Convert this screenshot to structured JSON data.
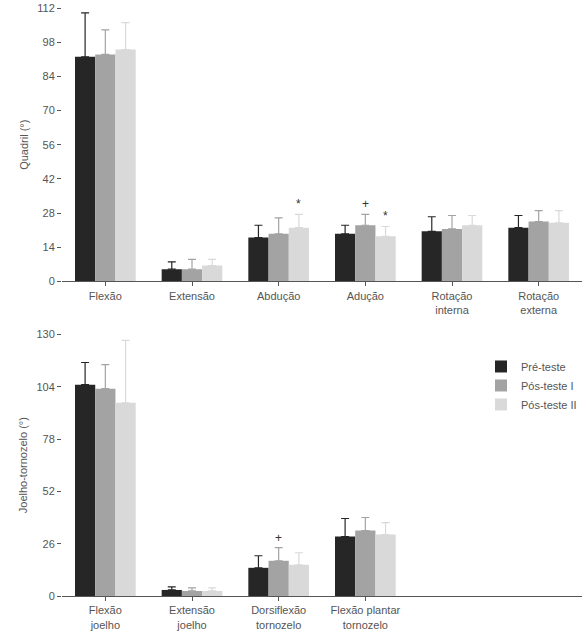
{
  "chart_data": [
    {
      "type": "bar",
      "y_label": "Quadril (°)",
      "categories": [
        "Flexão",
        "Extensão",
        "Abdução",
        "Adução",
        "Rotação\ninterna",
        "Rotação\nexterna"
      ],
      "series": [
        {
          "name": "Pré-teste",
          "color": "#262626",
          "values": [
            92,
            5,
            18,
            19.5,
            20.5,
            22
          ],
          "errors": [
            18,
            3,
            5,
            3.5,
            6,
            5
          ]
        },
        {
          "name": "Pós-teste I",
          "color": "#a3a3a3",
          "values": [
            93,
            5,
            19.5,
            23,
            21.5,
            24.5
          ],
          "errors": [
            10,
            4,
            6.5,
            4.5,
            5.5,
            4.5
          ]
        },
        {
          "name": "Pós-teste II",
          "color": "#d9d9d9",
          "values": [
            95,
            6.5,
            22,
            18.5,
            23,
            24
          ],
          "errors": [
            11,
            2.5,
            5.5,
            4,
            4,
            5
          ]
        }
      ],
      "annotations": [
        {
          "category": "Abdução",
          "series": "Pós-teste II",
          "text": "*"
        },
        {
          "category": "Adução",
          "series": "Pós-teste I",
          "text": "+"
        },
        {
          "category": "Adução",
          "series": "Pós-teste II",
          "text": "*"
        }
      ],
      "ylim": [
        0,
        112
      ],
      "yticks": [
        0,
        14,
        28,
        42,
        56,
        70,
        84,
        98,
        112
      ],
      "grid": false
    },
    {
      "type": "bar",
      "y_label": "Joelho-tornozelo (°)",
      "categories": [
        "Flexão\njoelho",
        "Extensão\njoelho",
        "Dorsiflexão\ntornozelo",
        "Flexão plantar\ntornozelo"
      ],
      "series": [
        {
          "name": "Pré-teste",
          "color": "#262626",
          "values": [
            105,
            3,
            14,
            29.5
          ],
          "errors": [
            11,
            1.5,
            6,
            9
          ]
        },
        {
          "name": "Pós-teste I",
          "color": "#a3a3a3",
          "values": [
            103,
            2.5,
            17.5,
            32.5
          ],
          "errors": [
            12,
            1.5,
            6.5,
            6.5
          ]
        },
        {
          "name": "Pós-teste II",
          "color": "#d9d9d9",
          "values": [
            96,
            2.5,
            15.5,
            30.5
          ],
          "errors": [
            31,
            1.5,
            6,
            6
          ]
        }
      ],
      "annotations": [
        {
          "category": "Dorsiflexão\ntornozelo",
          "series": "Pós-teste I",
          "text": "+"
        }
      ],
      "ylim": [
        0,
        130
      ],
      "yticks": [
        0,
        26,
        52,
        78,
        104,
        130
      ],
      "grid": false,
      "legend": "upper right"
    }
  ]
}
